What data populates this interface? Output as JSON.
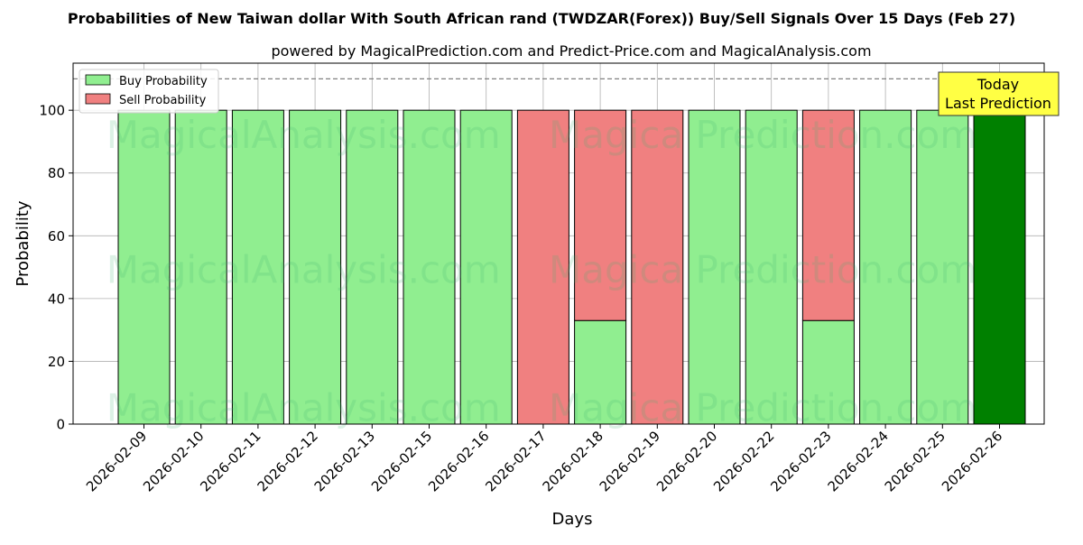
{
  "chart_data": {
    "type": "bar",
    "title": "Probabilities of New Taiwan dollar With South African rand (TWDZAR(Forex)) Buy/Sell Signals Over 15 Days (Feb 27)",
    "subtitle": "powered by MagicalPrediction.com and Predict-Price.com and MagicalAnalysis.com",
    "xlabel": "Days",
    "ylabel": "Probability",
    "ylim": [
      0,
      115
    ],
    "yticks": [
      0,
      20,
      40,
      60,
      80,
      100
    ],
    "grid": true,
    "legend_position": "top-left",
    "reference_line": 110,
    "categories": [
      "2026-02-09",
      "2026-02-10",
      "2026-02-11",
      "2026-02-12",
      "2026-02-13",
      "2026-02-15",
      "2026-02-16",
      "2026-02-17",
      "2026-02-18",
      "2026-02-19",
      "2026-02-20",
      "2026-02-22",
      "2026-02-23",
      "2026-02-24",
      "2026-02-25",
      "2026-02-26"
    ],
    "series": [
      {
        "name": "Buy Probability",
        "color": "#90ee90",
        "values": [
          100,
          100,
          100,
          100,
          100,
          100,
          100,
          0,
          33,
          0,
          100,
          100,
          33,
          100,
          100,
          100
        ]
      },
      {
        "name": "Sell Probability",
        "color": "#f08080",
        "values": [
          0,
          0,
          0,
          0,
          0,
          0,
          0,
          100,
          67,
          100,
          0,
          0,
          67,
          0,
          0,
          0
        ]
      }
    ],
    "highlight": {
      "index": 15,
      "color": "#008000"
    },
    "annotation": {
      "line1": "Today",
      "line2": "Last Prediction",
      "color": "#ffff44"
    },
    "watermark": "MagicalAnalysis.com    Magica Prediction.com"
  }
}
